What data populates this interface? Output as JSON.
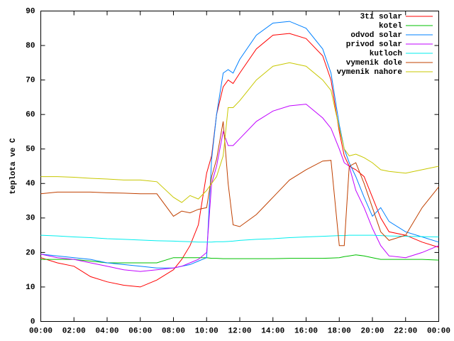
{
  "chart_data": {
    "type": "line",
    "ylabel": "teplota ve C",
    "x": [
      0,
      1,
      2,
      3,
      4,
      5,
      6,
      7,
      8,
      8.5,
      9,
      9.5,
      10,
      10.3,
      10.6,
      11,
      11.3,
      11.6,
      12,
      13,
      14,
      15,
      16,
      17,
      17.5,
      18,
      18.3,
      18.6,
      19,
      19.5,
      20,
      20.5,
      21,
      22,
      23,
      24
    ],
    "xlim": [
      0,
      24
    ],
    "xticks": [
      {
        "value": 0,
        "label": "00:00"
      },
      {
        "value": 2,
        "label": "02:00"
      },
      {
        "value": 4,
        "label": "04:00"
      },
      {
        "value": 6,
        "label": "06:00"
      },
      {
        "value": 8,
        "label": "08:00"
      },
      {
        "value": 10,
        "label": "10:00"
      },
      {
        "value": 12,
        "label": "12:00"
      },
      {
        "value": 14,
        "label": "14:00"
      },
      {
        "value": 16,
        "label": "16:00"
      },
      {
        "value": 18,
        "label": "18:00"
      },
      {
        "value": 20,
        "label": "20:00"
      },
      {
        "value": 22,
        "label": "22:00"
      },
      {
        "value": 24,
        "label": "00:00"
      }
    ],
    "ylim": [
      0,
      90
    ],
    "yticks": [
      0,
      10,
      20,
      30,
      40,
      50,
      60,
      70,
      80,
      90
    ],
    "legend": "top-right",
    "series": [
      {
        "name": "3ti solar",
        "color": "#ff0000",
        "values": [
          18.5,
          17,
          16,
          13,
          11.5,
          10.5,
          10,
          12,
          15,
          18,
          22,
          28,
          43,
          48,
          60,
          68,
          70,
          69,
          72,
          79,
          83,
          83.5,
          82,
          77,
          70,
          55,
          48,
          45,
          44,
          42,
          36,
          30,
          26,
          25,
          23,
          21.5
        ]
      },
      {
        "name": "kotel",
        "color": "#00c000",
        "values": [
          18,
          18,
          18,
          17.5,
          17,
          17,
          17,
          17,
          18.5,
          18.5,
          18.5,
          18.5,
          18.5,
          18.3,
          18.3,
          18.2,
          18.2,
          18.2,
          18.2,
          18.2,
          18.2,
          18.3,
          18.3,
          18.3,
          18.4,
          18.5,
          18.8,
          19,
          19.3,
          19,
          18.5,
          18,
          18,
          18,
          18,
          17.8
        ]
      },
      {
        "name": "odvod solar",
        "color": "#0080ff",
        "values": [
          19.5,
          19,
          18.5,
          18,
          17,
          16.5,
          16,
          15.5,
          15.5,
          16,
          16.5,
          17.5,
          18.5,
          47,
          60,
          72,
          73,
          72,
          76,
          83,
          86.5,
          87,
          85,
          79,
          72,
          57,
          50,
          46,
          42,
          36,
          30.5,
          33,
          29,
          26,
          24.5,
          23
        ]
      },
      {
        "name": "privod solar",
        "color": "#c000ff",
        "values": [
          19.5,
          18.5,
          18,
          17,
          16,
          15,
          14.5,
          15,
          15.5,
          16,
          17,
          18,
          20,
          40,
          45,
          55,
          51,
          51,
          53,
          58,
          61,
          62.5,
          63,
          59,
          56,
          50,
          46,
          45,
          38,
          33,
          27,
          22,
          19,
          18.5,
          20,
          22
        ]
      },
      {
        "name": "kutloch",
        "color": "#00eeee",
        "values": [
          25,
          24.8,
          24.5,
          24.3,
          24,
          23.8,
          23.6,
          23.4,
          23.3,
          23.2,
          23.1,
          23,
          23,
          23,
          23.1,
          23.1,
          23.2,
          23.3,
          23.5,
          23.8,
          24,
          24.3,
          24.5,
          24.7,
          24.8,
          24.9,
          24.9,
          25,
          25,
          25,
          25,
          24.9,
          24.8,
          24.7,
          24.6,
          24.5
        ]
      },
      {
        "name": "vymenik dole",
        "color": "#c04000",
        "values": [
          37,
          37.5,
          37.5,
          37.5,
          37.3,
          37.2,
          37,
          37,
          30.5,
          32,
          31.5,
          32.5,
          33,
          42,
          47,
          58,
          40,
          28,
          27.5,
          31,
          36,
          41,
          44,
          46.5,
          46.7,
          22,
          22,
          45,
          46,
          40,
          33,
          26,
          23.5,
          25,
          33,
          39
        ]
      },
      {
        "name": "vymenik nahore",
        "color": "#c8c800",
        "values": [
          42,
          42,
          41.8,
          41.5,
          41.3,
          41,
          41,
          40.5,
          36,
          34.5,
          36.5,
          35.5,
          38,
          40,
          42,
          48,
          62,
          62,
          64,
          70,
          74,
          75,
          74,
          70,
          67,
          56,
          50,
          48,
          48.5,
          47.5,
          46,
          44,
          43.5,
          43,
          44,
          45
        ]
      }
    ]
  }
}
